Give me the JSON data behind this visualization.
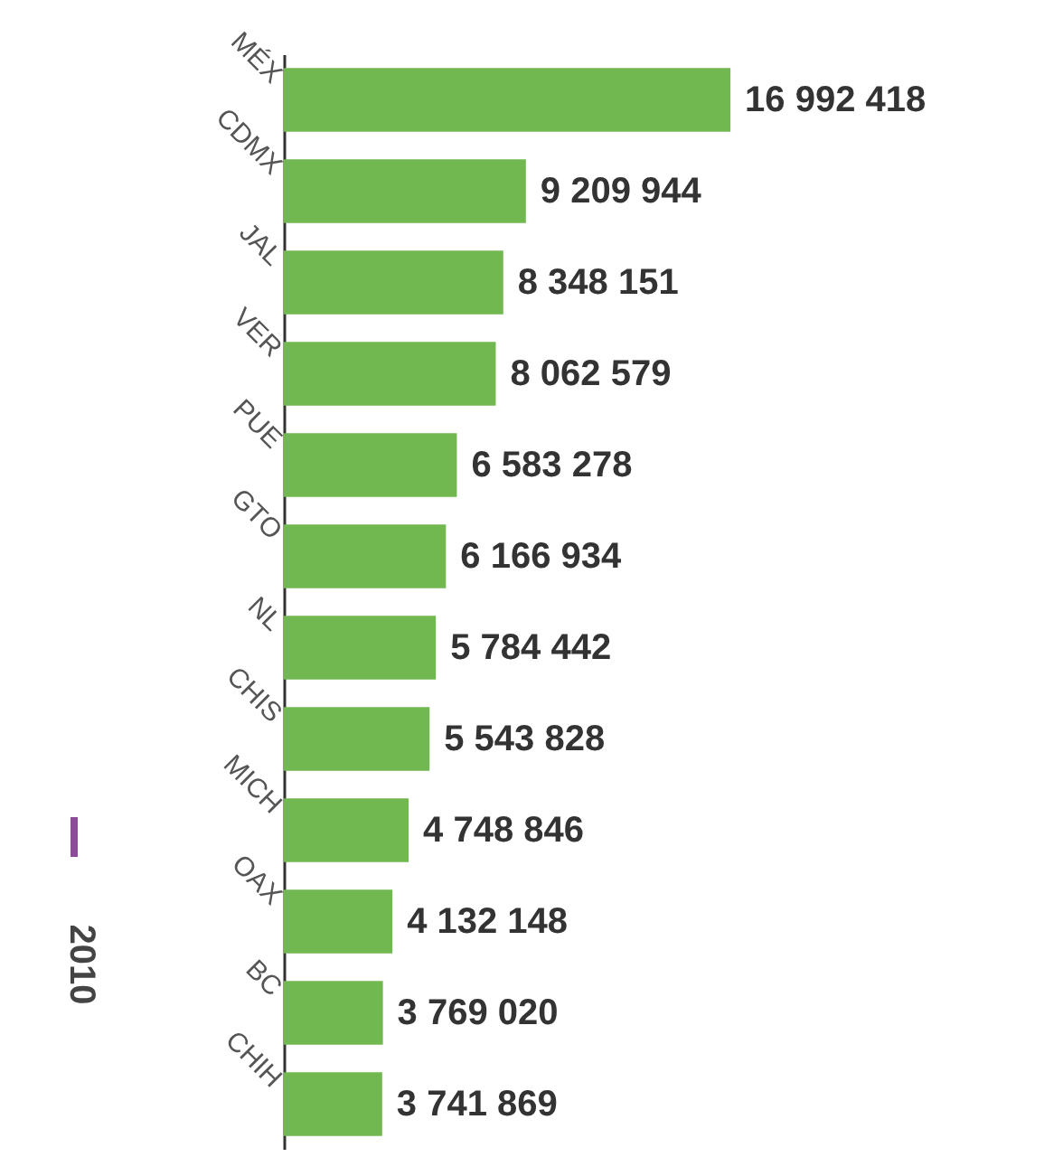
{
  "chart_data": {
    "type": "bar",
    "orientation": "horizontal",
    "categories": [
      "MÉX",
      "CDMX",
      "JAL",
      "VER",
      "PUE",
      "GTO",
      "NL",
      "CHIS",
      "MICH",
      "OAX",
      "BC",
      "CHIH"
    ],
    "values": [
      16992418,
      9209944,
      8348151,
      8062579,
      6583278,
      6166934,
      5784442,
      5543828,
      4748846,
      4132148,
      3769020,
      3741869
    ],
    "color": "#70b84f",
    "data_labels": true,
    "annotations": [
      "2010"
    ]
  }
}
